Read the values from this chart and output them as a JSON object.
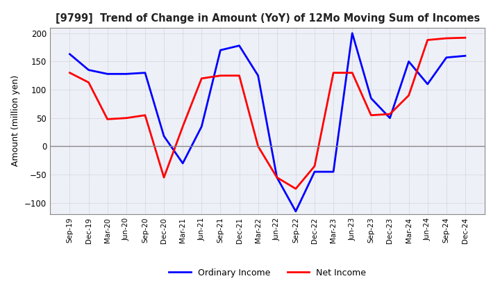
{
  "title": "[9799]  Trend of Change in Amount (YoY) of 12Mo Moving Sum of Incomes",
  "ylabel": "Amount (million yen)",
  "ylim": [
    -120,
    210
  ],
  "yticks": [
    -100,
    -50,
    0,
    50,
    100,
    150,
    200
  ],
  "x_labels": [
    "Sep-19",
    "Dec-19",
    "Mar-20",
    "Jun-20",
    "Sep-20",
    "Dec-20",
    "Mar-21",
    "Jun-21",
    "Sep-21",
    "Dec-21",
    "Mar-22",
    "Jun-22",
    "Sep-22",
    "Dec-22",
    "Mar-23",
    "Jun-23",
    "Sep-23",
    "Dec-23",
    "Mar-24",
    "Jun-24",
    "Sep-24",
    "Dec-24"
  ],
  "ordinary_income": [
    163,
    135,
    128,
    128,
    130,
    18,
    -30,
    35,
    170,
    178,
    125,
    -55,
    -115,
    -45,
    -45,
    200,
    85,
    50,
    150,
    110,
    157,
    160
  ],
  "net_income": [
    130,
    113,
    48,
    50,
    55,
    -55,
    35,
    120,
    125,
    125,
    0,
    -55,
    -75,
    -35,
    130,
    130,
    55,
    57,
    90,
    188,
    191,
    192
  ],
  "ordinary_color": "#0000ff",
  "net_color": "#ff0000",
  "legend_labels": [
    "Ordinary Income",
    "Net Income"
  ],
  "background_color": "#ffffff",
  "plot_bg_color": "#eef0f8",
  "grid_color": "#aaaaaa"
}
